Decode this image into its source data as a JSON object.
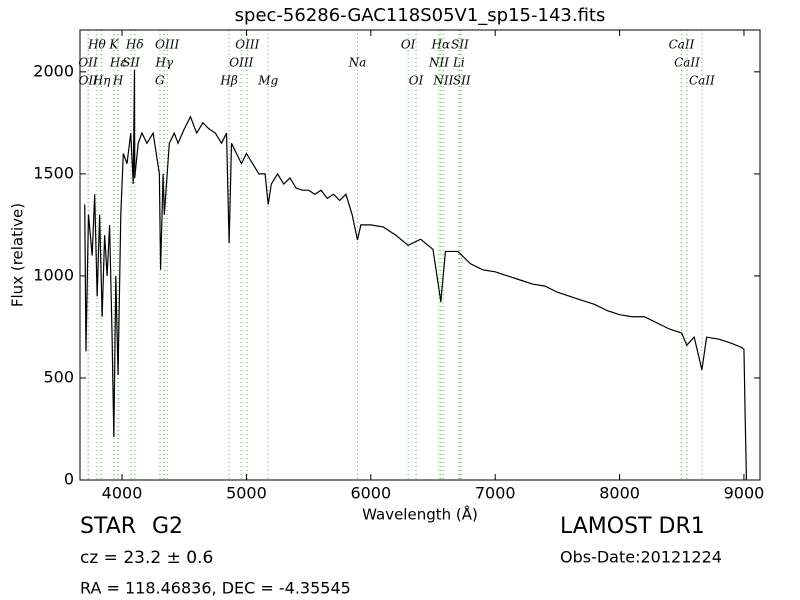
{
  "chart_data": {
    "type": "line",
    "title": "spec-56286-GAC118S05V1_sp15-143.fits",
    "x_label": "Wavelength (Å)",
    "y_label": "Flux (relative)",
    "xlim": [
      3662,
      9129
    ],
    "ylim": [
      0,
      2205
    ],
    "xticks": [
      4000,
      5000,
      6000,
      7000,
      8000,
      9000
    ],
    "yticks": [
      0,
      500,
      1000,
      1500,
      2000
    ],
    "series": [
      {
        "color": "#000000",
        "x": [
          3700,
          3710,
          3730,
          3760,
          3780,
          3800,
          3820,
          3840,
          3860,
          3880,
          3900,
          3920,
          3934,
          3950,
          3968,
          3990,
          4010,
          4040,
          4070,
          4090,
          4100,
          4102,
          4130,
          4160,
          4200,
          4250,
          4300,
          4310,
          4330,
          4340,
          4380,
          4420,
          4450,
          4500,
          4550,
          4600,
          4650,
          4700,
          4750,
          4800,
          4840,
          4861,
          4880,
          4920,
          4960,
          5000,
          5050,
          5100,
          5150,
          5175,
          5200,
          5250,
          5300,
          5350,
          5400,
          5450,
          5500,
          5550,
          5600,
          5650,
          5700,
          5750,
          5800,
          5850,
          5893,
          5920,
          6000,
          6100,
          6200,
          6300,
          6400,
          6500,
          6563,
          6600,
          6700,
          6800,
          6900,
          7000,
          7100,
          7200,
          7300,
          7400,
          7500,
          7600,
          7700,
          7800,
          7900,
          8000,
          8100,
          8200,
          8300,
          8400,
          8500,
          8540,
          8600,
          8662,
          8700,
          8800,
          8900,
          8980,
          9000,
          9010,
          9020
        ],
        "values": [
          1350,
          630,
          1300,
          1100,
          1400,
          900,
          1300,
          800,
          1200,
          1000,
          1250,
          700,
          210,
          1000,
          515,
          1300,
          1600,
          1550,
          1700,
          1450,
          2010,
          1480,
          1650,
          1700,
          1650,
          1700,
          1500,
          1030,
          1500,
          1300,
          1650,
          1700,
          1650,
          1720,
          1780,
          1700,
          1750,
          1720,
          1700,
          1650,
          1700,
          1160,
          1650,
          1600,
          1550,
          1600,
          1550,
          1500,
          1500,
          1350,
          1450,
          1500,
          1450,
          1480,
          1430,
          1420,
          1420,
          1400,
          1420,
          1380,
          1400,
          1370,
          1400,
          1300,
          1176,
          1250,
          1250,
          1240,
          1200,
          1150,
          1180,
          1130,
          873,
          1120,
          1120,
          1060,
          1030,
          1020,
          1000,
          980,
          960,
          950,
          920,
          900,
          880,
          860,
          830,
          810,
          800,
          800,
          770,
          740,
          720,
          660,
          700,
          540,
          700,
          690,
          670,
          650,
          640,
          300,
          0
        ]
      }
    ],
    "line_labels": [
      [
        {
          "label": "Hθ",
          "x": 3798
        },
        {
          "label": "K",
          "x": 3934
        },
        {
          "label": "Hδ",
          "x": 4102
        },
        {
          "label": "OIII",
          "x": 4363
        },
        {
          "label": "OIII",
          "x": 5007
        },
        {
          "label": "OI",
          "x": 6300
        },
        {
          "label": "Hα",
          "x": 6563
        },
        {
          "label": "SII",
          "x": 6716
        },
        {
          "label": "CaII",
          "x": 8498
        }
      ],
      [
        {
          "label": "OII",
          "x": 3727
        },
        {
          "label": "Hε",
          "x": 3970
        },
        {
          "label": "SII",
          "x": 4072
        },
        {
          "label": "Hγ",
          "x": 4340
        },
        {
          "label": "OIII",
          "x": 4959
        },
        {
          "label": "Na",
          "x": 5893
        },
        {
          "label": "NII",
          "x": 6548
        },
        {
          "label": "Li",
          "x": 6708
        },
        {
          "label": "CaII",
          "x": 8542
        }
      ],
      [
        {
          "label": "OII",
          "x": 3729
        },
        {
          "label": "Hη",
          "x": 3835
        },
        {
          "label": "H",
          "x": 3968
        },
        {
          "label": "G",
          "x": 4304
        },
        {
          "label": "Hβ",
          "x": 4861
        },
        {
          "label": "Mg",
          "x": 5175
        },
        {
          "label": "OI",
          "x": 6364
        },
        {
          "label": "NII",
          "x": 6583
        },
        {
          "label": "SII",
          "x": 6731
        },
        {
          "label": "CaII",
          "x": 8662
        }
      ]
    ]
  },
  "info": {
    "class": "STAR",
    "subclass": "G2",
    "redshift": "cz = 23.2  ± 0.6",
    "coords": "RA = 118.46836, DEC = -4.35545",
    "survey": "LAMOST DR1",
    "obs_date": "Obs-Date:20121224"
  }
}
